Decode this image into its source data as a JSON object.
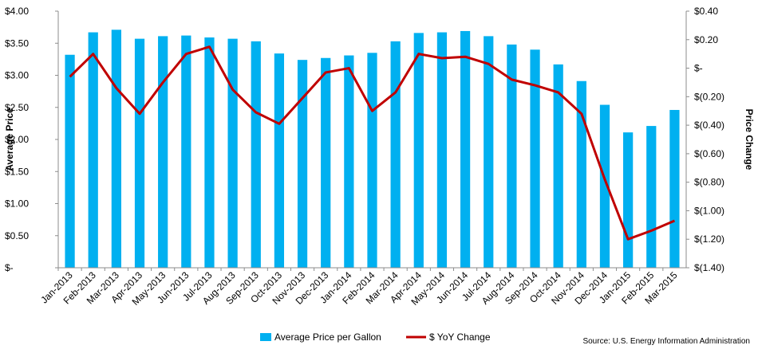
{
  "chart_data": {
    "type": "bar",
    "categories": [
      "Jan-2013",
      "Feb-2013",
      "Mar-2013",
      "Apr-2013",
      "May-2013",
      "Jun-2013",
      "Jul-2013",
      "Aug-2013",
      "Sep-2013",
      "Oct-2013",
      "Nov-2013",
      "Dec-2013",
      "Jan-2014",
      "Feb-2014",
      "Mar-2014",
      "Apr-2014",
      "May-2014",
      "Jun-2014",
      "Jul-2014",
      "Aug-2014",
      "Sep-2014",
      "Oct-2014",
      "Nov-2014",
      "Dec-2014",
      "Jan-2015",
      "Feb-2015",
      "Mar-2015"
    ],
    "series": [
      {
        "name": "Average Price per Gallon",
        "kind": "bar",
        "axis": "left",
        "color": "#00B0F0",
        "values": [
          3.32,
          3.67,
          3.71,
          3.57,
          3.61,
          3.62,
          3.59,
          3.57,
          3.53,
          3.34,
          3.24,
          3.27,
          3.31,
          3.35,
          3.53,
          3.66,
          3.67,
          3.69,
          3.61,
          3.48,
          3.4,
          3.17,
          2.91,
          2.54,
          2.11,
          2.21,
          2.46
        ]
      },
      {
        "name": "$ YoY Change",
        "kind": "line",
        "axis": "right",
        "color": "#C00000",
        "values": [
          -0.06,
          0.1,
          -0.14,
          -0.32,
          -0.1,
          0.1,
          0.15,
          -0.15,
          -0.31,
          -0.39,
          -0.21,
          -0.03,
          0.0,
          -0.3,
          -0.17,
          0.1,
          0.07,
          0.08,
          0.03,
          -0.08,
          -0.12,
          -0.17,
          -0.32,
          -0.78,
          -1.2,
          -1.14,
          -1.07
        ]
      }
    ],
    "left_axis": {
      "label": "Average Price",
      "ylim": [
        0,
        4
      ],
      "ticks": [
        0,
        0.5,
        1,
        1.5,
        2,
        2.5,
        3,
        3.5,
        4
      ],
      "tick_labels": [
        "$-",
        "$0.50",
        "$1.00",
        "$1.50",
        "$2.00",
        "$2.50",
        "$3.00",
        "$3.50",
        "$4.00"
      ]
    },
    "right_axis": {
      "label": "Price Change",
      "ylim": [
        -1.4,
        0.4
      ],
      "ticks": [
        -1.4,
        -1.2,
        -1.0,
        -0.8,
        -0.6,
        -0.4,
        -0.2,
        0,
        0.2,
        0.4
      ],
      "tick_labels": [
        "$(1.40)",
        "$(1.20)",
        "$(1.00)",
        "$(0.80)",
        "$(0.60)",
        "$(0.40)",
        "$(0.20)",
        "$-",
        "$0.20",
        "$0.40"
      ]
    },
    "grid": false,
    "legend_position": "bottom-center",
    "source": "Source: U.S. Energy Information Administration"
  }
}
